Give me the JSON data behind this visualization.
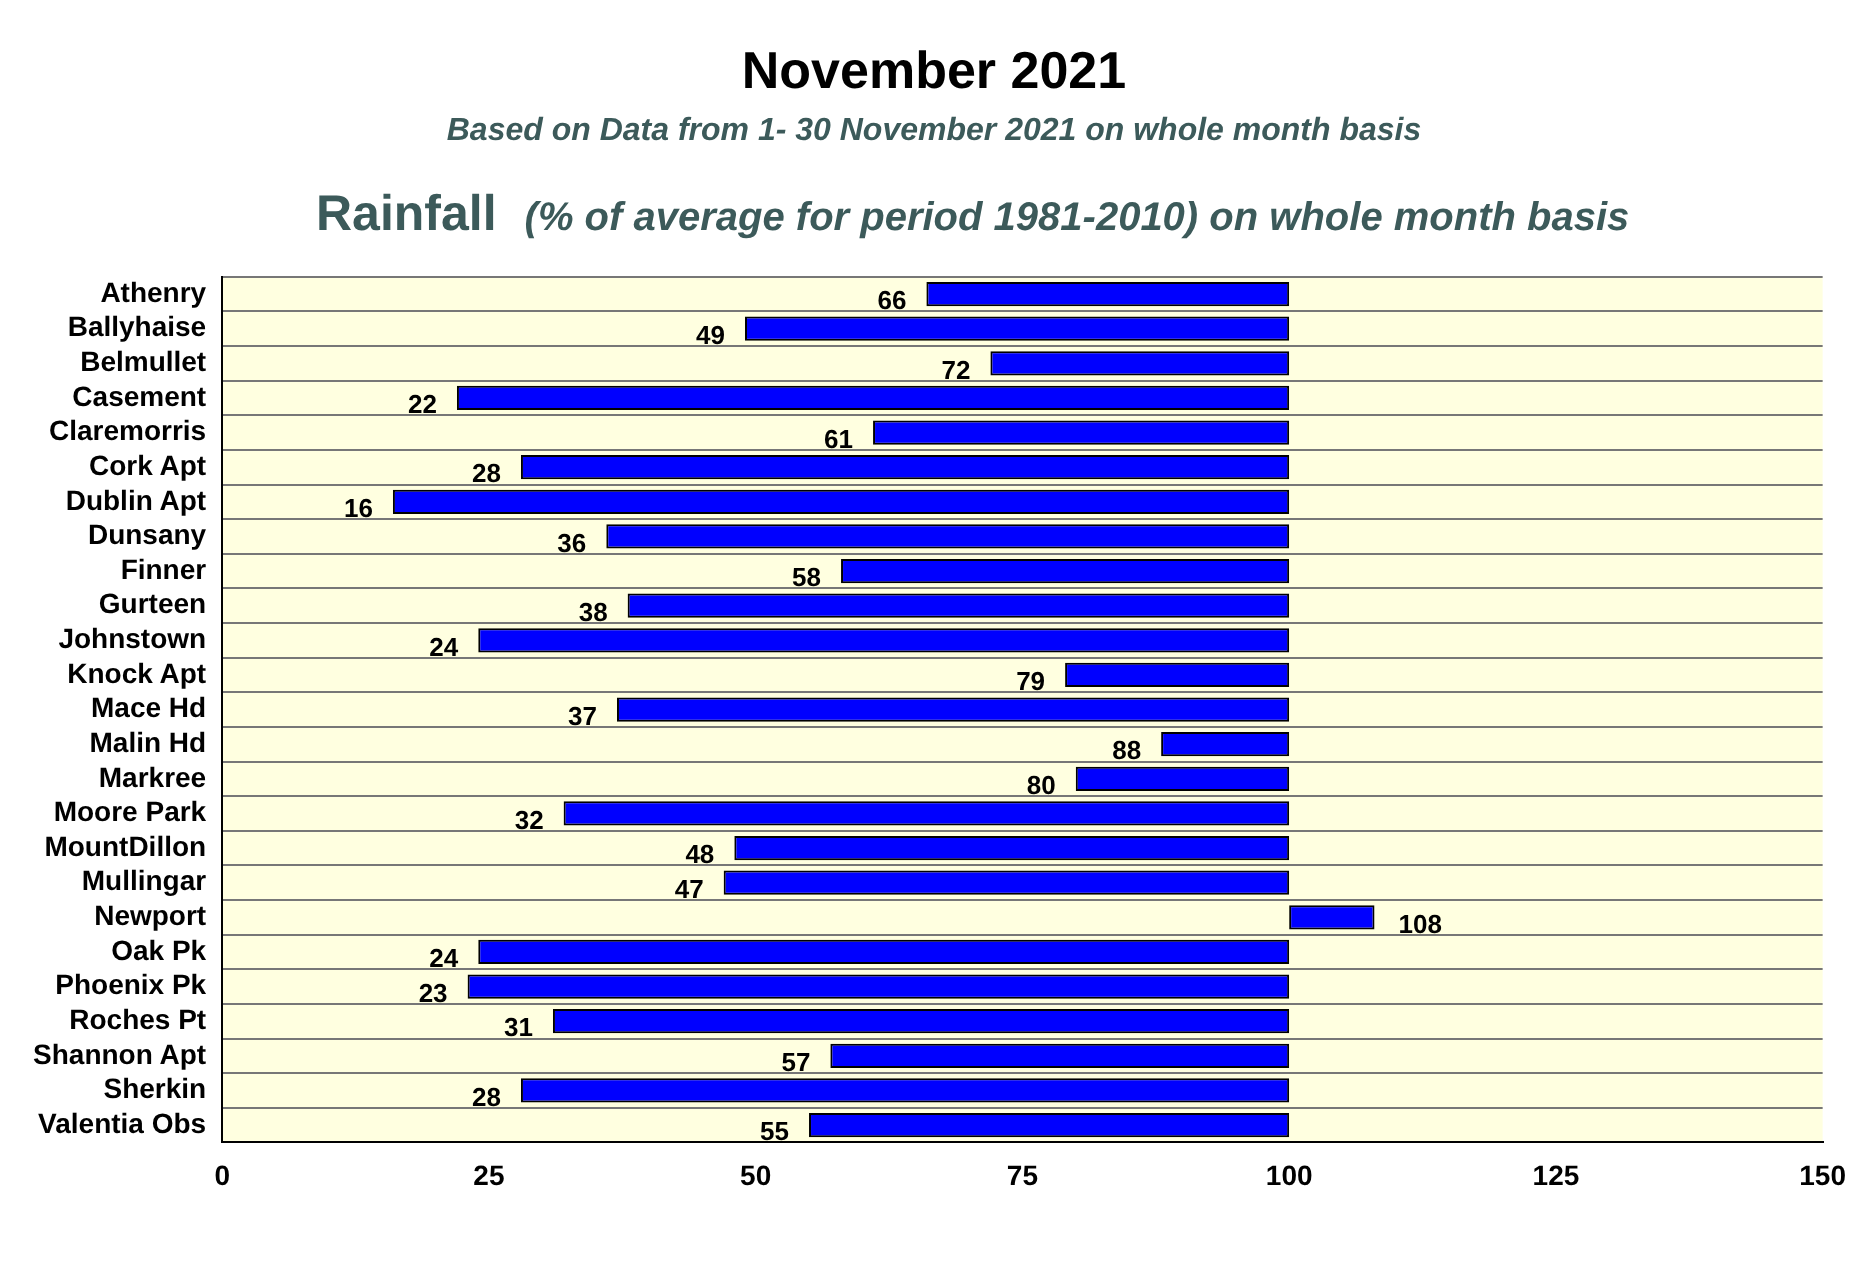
{
  "chart_data": {
    "type": "bar",
    "orientation": "horizontal",
    "title": "November 2021",
    "subtitle": "Based on Data from 1- 30 November 2021 on whole month basis",
    "annotations": [
      "Rainfall",
      "(% of average for period 1981-2010) on whole month basis"
    ],
    "categories": [
      "Athenry",
      "Ballyhaise",
      "Belmullet",
      "Casement",
      "Claremorris",
      "Cork Apt",
      "Dublin Apt",
      "Dunsany",
      "Finner",
      "Gurteen",
      "Johnstown",
      "Knock Apt",
      "Mace Hd",
      "Malin Hd",
      "Markree",
      "Moore Park",
      "MountDillon",
      "Mullingar",
      "Newport",
      "Oak Pk",
      "Phoenix Pk",
      "Roches Pt",
      "Shannon Apt",
      "Sherkin",
      "Valentia Obs"
    ],
    "base": [
      100,
      100,
      100,
      100,
      100,
      100,
      100,
      100,
      100,
      100,
      100,
      100,
      100,
      100,
      100,
      100,
      100,
      100,
      100,
      100,
      100,
      100,
      100,
      100,
      100
    ],
    "values": [
      -34,
      -51,
      -28,
      -78,
      -39,
      -72,
      -84,
      -64,
      -42,
      -62,
      -76,
      -21,
      -63,
      -12,
      -20,
      -68,
      -52,
      -53,
      8,
      -76,
      -77,
      -69,
      -43,
      -72,
      -45
    ],
    "value_labels": [
      "66",
      "49",
      "72",
      "22",
      "61",
      "28",
      "16",
      "36",
      "58",
      "38",
      "24",
      "79",
      "37",
      "88",
      "80",
      "32",
      "48",
      "47",
      "108",
      "24",
      "23",
      "31",
      "57",
      "28",
      "55"
    ],
    "color": "#0000ff",
    "xlim": [
      0,
      150
    ],
    "xticks": [
      0,
      25,
      50,
      75,
      100,
      125,
      150
    ],
    "grid": "y",
    "legend": false
  }
}
